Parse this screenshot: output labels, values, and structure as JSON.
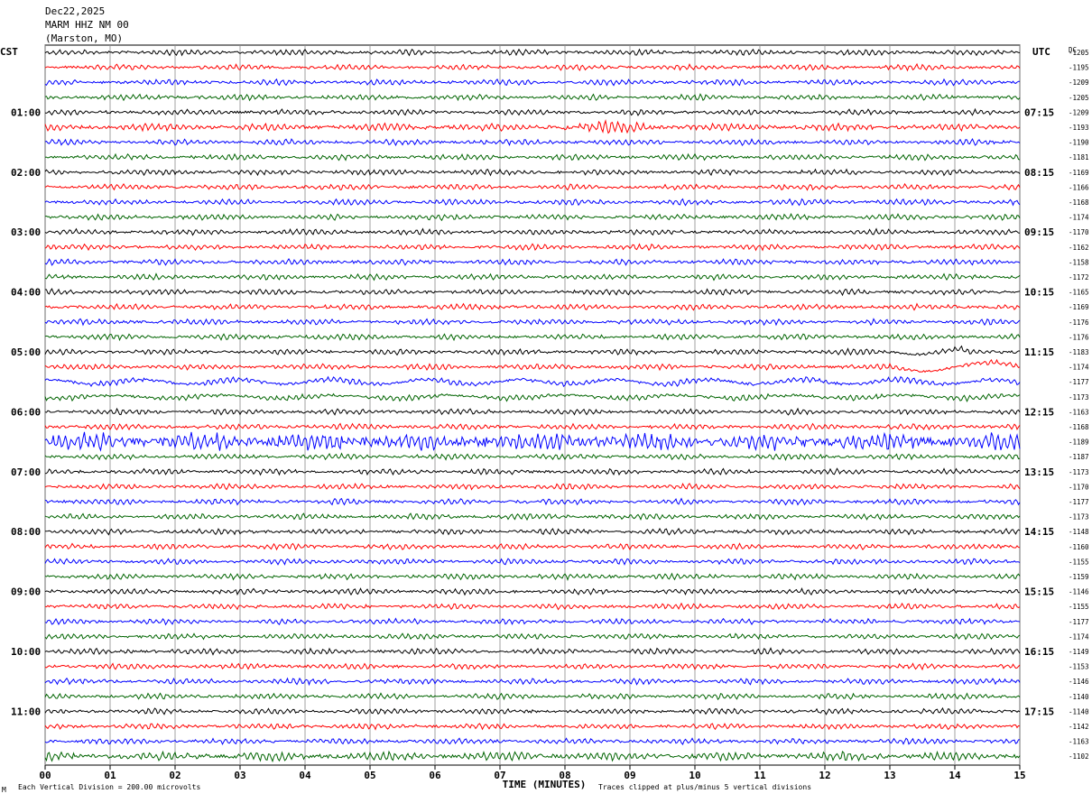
{
  "header": {
    "date": "Dec22,2025",
    "station": "MARM HHZ NM 00",
    "location": "(Marston, MO)"
  },
  "labels": {
    "left_zone": "CST",
    "right_zone": "UTC",
    "dc_header": "DC"
  },
  "footer": {
    "scale_note": "Each Vertical Division =  200.00 microvolts",
    "clip_note": "Traces clipped at plus/minus 5 vertical divisions",
    "corner_mark": "M"
  },
  "chart_data": {
    "type": "line",
    "title": "MARM HHZ NM 00",
    "xlabel": "TIME (MINUTES)",
    "ylabel": "",
    "xlim": [
      0,
      15
    ],
    "x_ticks": [
      "00",
      "01",
      "02",
      "03",
      "04",
      "05",
      "06",
      "07",
      "08",
      "09",
      "10",
      "11",
      "12",
      "13",
      "14",
      "15"
    ],
    "trace_colors": [
      "#000000",
      "#ff0000",
      "#0000ff",
      "#006400"
    ],
    "hours_cst": [
      "01:00",
      "02:00",
      "03:00",
      "04:00",
      "05:00",
      "06:00",
      "07:00",
      "08:00",
      "09:00",
      "10:00",
      "11:00"
    ],
    "hours_utc": [
      "07:15",
      "08:15",
      "09:15",
      "10:15",
      "11:15",
      "12:15",
      "13:15",
      "14:15",
      "15:15",
      "16:15",
      "17:15"
    ],
    "dc_offsets": [
      -1205,
      -1195,
      -1209,
      -1205,
      -1209,
      -1193,
      -1190,
      -1181,
      -1169,
      -1166,
      -1168,
      -1174,
      -1170,
      -1162,
      -1158,
      -1172,
      -1165,
      -1169,
      -1176,
      -1176,
      -1183,
      -1174,
      -1177,
      -1173,
      -1163,
      -1168,
      -1189,
      -1187,
      -1173,
      -1170,
      -1177,
      -1173,
      -1148,
      -1160,
      -1155,
      -1159,
      -1146,
      -1155,
      -1177,
      -1174,
      -1149,
      -1153,
      -1146,
      -1140,
      -1140,
      -1142,
      -1163,
      -1102
    ]
  }
}
